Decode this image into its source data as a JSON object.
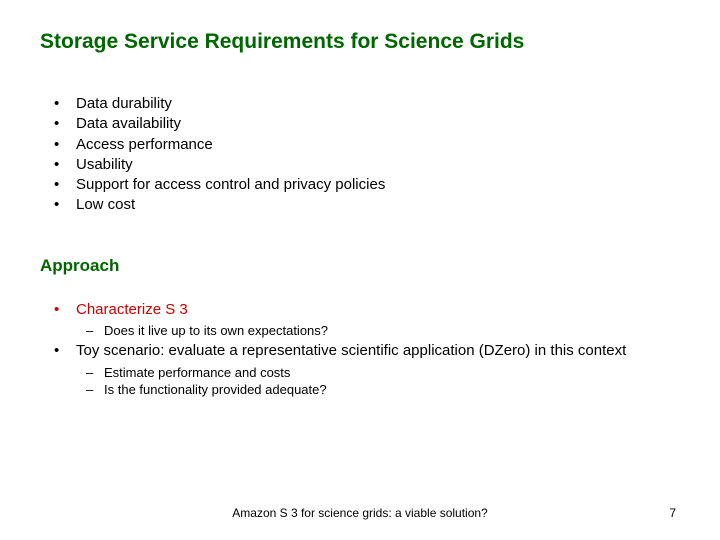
{
  "title": "Storage Service Requirements for Science Grids",
  "bullets": {
    "b0": "Data durability",
    "b1": "Data availability",
    "b2": "Access performance",
    "b3": "Usability",
    "b4": "Support for access control and privacy policies",
    "b5": "Low cost"
  },
  "subheading": "Approach",
  "approach": {
    "item0": "Characterize S 3",
    "item0_sub0": "Does it live up to its own expectations?",
    "item1": "Toy scenario: evaluate a representative scientific application (DZero) in this context",
    "item1_sub0": "Estimate performance and costs",
    "item1_sub1": "Is the functionality provided adequate?"
  },
  "footer": {
    "center": "Amazon S 3 for science grids: a viable solution?",
    "page": "7"
  },
  "colors": {
    "heading": "#006600",
    "accent": "#cc0000",
    "text": "#000000",
    "background": "#ffffff"
  }
}
